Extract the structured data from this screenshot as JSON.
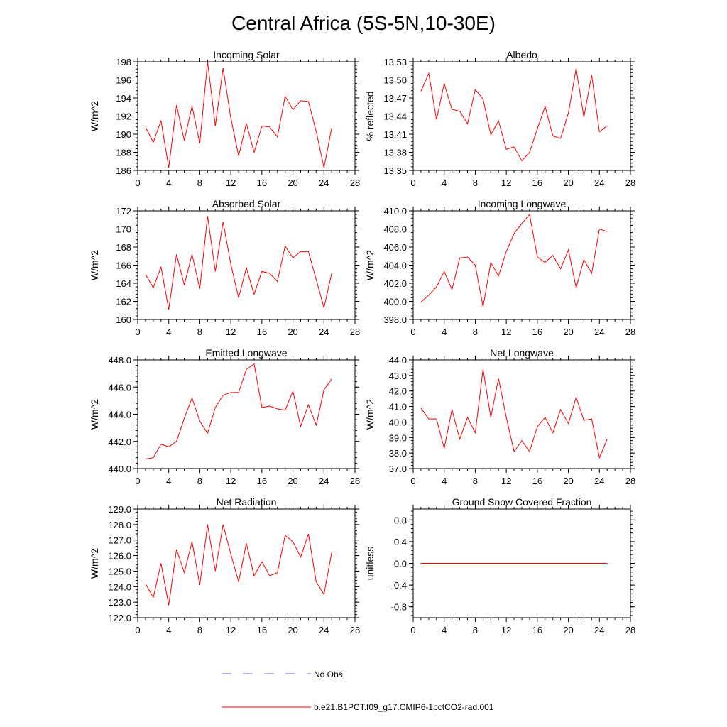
{
  "title": "Central Africa (5S-5N,10-30E)",
  "x_ticks": [
    0,
    4,
    8,
    12,
    16,
    20,
    24,
    28
  ],
  "legend": {
    "obs_label": "No Obs",
    "model_label": "b.e21.B1PCT.f09_g17.CMIP6-1pctCO2-rad.001"
  },
  "colors": {
    "model": "#ff0000",
    "obs": "#6666cc"
  },
  "chart_data": [
    {
      "type": "line",
      "title": "Incoming Solar",
      "ylabel": "W/m^2",
      "xlim": [
        0,
        28
      ],
      "ylim": [
        186,
        198
      ],
      "yticks": [
        "186",
        "188",
        "190",
        "192",
        "194",
        "196",
        "198"
      ],
      "x": [
        1,
        2,
        3,
        4,
        5,
        6,
        7,
        8,
        9,
        10,
        11,
        12,
        13,
        14,
        15,
        16,
        17,
        18,
        19,
        20,
        21,
        22,
        23,
        24,
        25
      ],
      "series": [
        {
          "values": [
            190.8,
            189.1,
            191.5,
            186.3,
            193.2,
            189.3,
            193.1,
            189.0,
            198.0,
            190.9,
            197.3,
            191.8,
            187.6,
            191.2,
            188.0,
            190.9,
            190.8,
            189.7,
            194.2,
            192.7,
            193.7,
            193.6,
            190.3,
            186.3,
            190.7
          ]
        }
      ]
    },
    {
      "type": "line",
      "title": "Albedo",
      "ylabel": "% reflected",
      "xlim": [
        0,
        28
      ],
      "ylim": [
        13.35,
        13.53
      ],
      "yticks": [
        "13.35",
        "13.38",
        "13.41",
        "13.44",
        "13.47",
        "13.50",
        "13.53"
      ],
      "x": [
        1,
        2,
        3,
        4,
        5,
        6,
        7,
        8,
        9,
        10,
        11,
        12,
        13,
        14,
        15,
        16,
        17,
        18,
        19,
        20,
        21,
        22,
        23,
        24,
        25
      ],
      "series": [
        {
          "values": [
            13.481,
            13.511,
            13.434,
            13.494,
            13.451,
            13.448,
            13.427,
            13.484,
            13.468,
            13.409,
            13.432,
            13.385,
            13.389,
            13.366,
            13.38,
            13.419,
            13.456,
            13.407,
            13.403,
            13.445,
            13.519,
            13.438,
            13.508,
            13.414,
            13.424
          ]
        }
      ]
    },
    {
      "type": "line",
      "title": "Absorbed Solar",
      "ylabel": "W/m^2",
      "xlim": [
        0,
        28
      ],
      "ylim": [
        160,
        172
      ],
      "yticks": [
        "160",
        "162",
        "164",
        "166",
        "168",
        "170",
        "172"
      ],
      "x": [
        1,
        2,
        3,
        4,
        5,
        6,
        7,
        8,
        9,
        10,
        11,
        12,
        13,
        14,
        15,
        16,
        17,
        18,
        19,
        20,
        21,
        22,
        23,
        24,
        25
      ],
      "series": [
        {
          "values": [
            165.0,
            163.5,
            165.8,
            161.1,
            167.2,
            163.8,
            167.2,
            163.4,
            171.4,
            165.3,
            170.8,
            166.1,
            162.4,
            165.7,
            162.8,
            165.3,
            165.1,
            164.2,
            168.1,
            166.8,
            167.5,
            167.5,
            164.4,
            161.3,
            165.1
          ]
        }
      ]
    },
    {
      "type": "line",
      "title": "Incoming Longwave",
      "ylabel": "W/m^2",
      "xlim": [
        0,
        28
      ],
      "ylim": [
        398,
        410
      ],
      "yticks": [
        "398.0",
        "400.0",
        "402.0",
        "404.0",
        "406.0",
        "408.0",
        "410.0"
      ],
      "x": [
        1,
        2,
        3,
        4,
        5,
        6,
        7,
        8,
        9,
        10,
        11,
        12,
        13,
        14,
        15,
        16,
        17,
        18,
        19,
        20,
        21,
        22,
        23,
        24,
        25
      ],
      "series": [
        {
          "values": [
            399.9,
            400.7,
            401.6,
            403.3,
            401.3,
            404.8,
            404.9,
            404.0,
            399.4,
            404.3,
            402.8,
            405.5,
            407.5,
            408.6,
            409.6,
            404.9,
            404.3,
            405.1,
            403.6,
            405.7,
            401.5,
            404.6,
            403.1,
            408.0,
            407.7
          ]
        }
      ]
    },
    {
      "type": "line",
      "title": "Emitted Longwave",
      "ylabel": "W/m^2",
      "xlim": [
        0,
        28
      ],
      "ylim": [
        440,
        448
      ],
      "yticks": [
        "440.0",
        "442.0",
        "444.0",
        "446.0",
        "448.0"
      ],
      "x": [
        1,
        2,
        3,
        4,
        5,
        6,
        7,
        8,
        9,
        10,
        11,
        12,
        13,
        14,
        15,
        16,
        17,
        18,
        19,
        20,
        21,
        22,
        23,
        24,
        25
      ],
      "series": [
        {
          "values": [
            440.7,
            440.8,
            441.8,
            441.6,
            442.0,
            443.7,
            445.2,
            443.5,
            442.6,
            444.5,
            445.4,
            445.6,
            445.6,
            447.3,
            447.7,
            444.5,
            444.6,
            444.4,
            444.3,
            445.7,
            443.1,
            444.7,
            443.2,
            445.8,
            446.6
          ]
        }
      ]
    },
    {
      "type": "line",
      "title": "Net Longwave",
      "ylabel": "W/m^2",
      "xlim": [
        0,
        28
      ],
      "ylim": [
        37,
        44
      ],
      "yticks": [
        "37.0",
        "38.0",
        "39.0",
        "40.0",
        "41.0",
        "42.0",
        "43.0",
        "44.0"
      ],
      "x": [
        1,
        2,
        3,
        4,
        5,
        6,
        7,
        8,
        9,
        10,
        11,
        12,
        13,
        14,
        15,
        16,
        17,
        18,
        19,
        20,
        21,
        22,
        23,
        24,
        25
      ],
      "series": [
        {
          "values": [
            40.9,
            40.2,
            40.2,
            38.3,
            40.8,
            38.9,
            40.3,
            39.3,
            43.4,
            40.3,
            42.8,
            40.3,
            38.1,
            38.8,
            38.1,
            39.7,
            40.3,
            39.3,
            40.8,
            39.9,
            41.6,
            40.1,
            40.2,
            37.7,
            38.9
          ]
        }
      ]
    },
    {
      "type": "line",
      "title": "Net Radiation",
      "ylabel": "W/m^2",
      "xlim": [
        0,
        28
      ],
      "ylim": [
        122,
        129
      ],
      "yticks": [
        "122.0",
        "123.0",
        "124.0",
        "125.0",
        "126.0",
        "127.0",
        "128.0",
        "129.0"
      ],
      "x": [
        1,
        2,
        3,
        4,
        5,
        6,
        7,
        8,
        9,
        10,
        11,
        12,
        13,
        14,
        15,
        16,
        17,
        18,
        19,
        20,
        21,
        22,
        23,
        24,
        25
      ],
      "series": [
        {
          "values": [
            124.2,
            123.3,
            125.5,
            122.8,
            126.4,
            124.9,
            126.9,
            124.1,
            128.0,
            125.0,
            128.0,
            126.1,
            124.3,
            126.8,
            124.7,
            125.6,
            124.7,
            124.9,
            127.3,
            126.9,
            125.9,
            127.4,
            124.3,
            123.5,
            126.2
          ]
        }
      ]
    },
    {
      "type": "line",
      "title": "Ground Snow Covered Fraction",
      "ylabel": "unitless",
      "xlim": [
        0,
        28
      ],
      "ylim": [
        -1,
        1
      ],
      "yticks": [
        "-0.8",
        "-0.4",
        "0.0",
        "0.4",
        "0.8"
      ],
      "x": [
        1,
        2,
        3,
        4,
        5,
        6,
        7,
        8,
        9,
        10,
        11,
        12,
        13,
        14,
        15,
        16,
        17,
        18,
        19,
        20,
        21,
        22,
        23,
        24,
        25
      ],
      "series": [
        {
          "values": [
            0,
            0,
            0,
            0,
            0,
            0,
            0,
            0,
            0,
            0,
            0,
            0,
            0,
            0,
            0,
            0,
            0,
            0,
            0,
            0,
            0,
            0,
            0,
            0,
            0
          ]
        }
      ]
    }
  ]
}
